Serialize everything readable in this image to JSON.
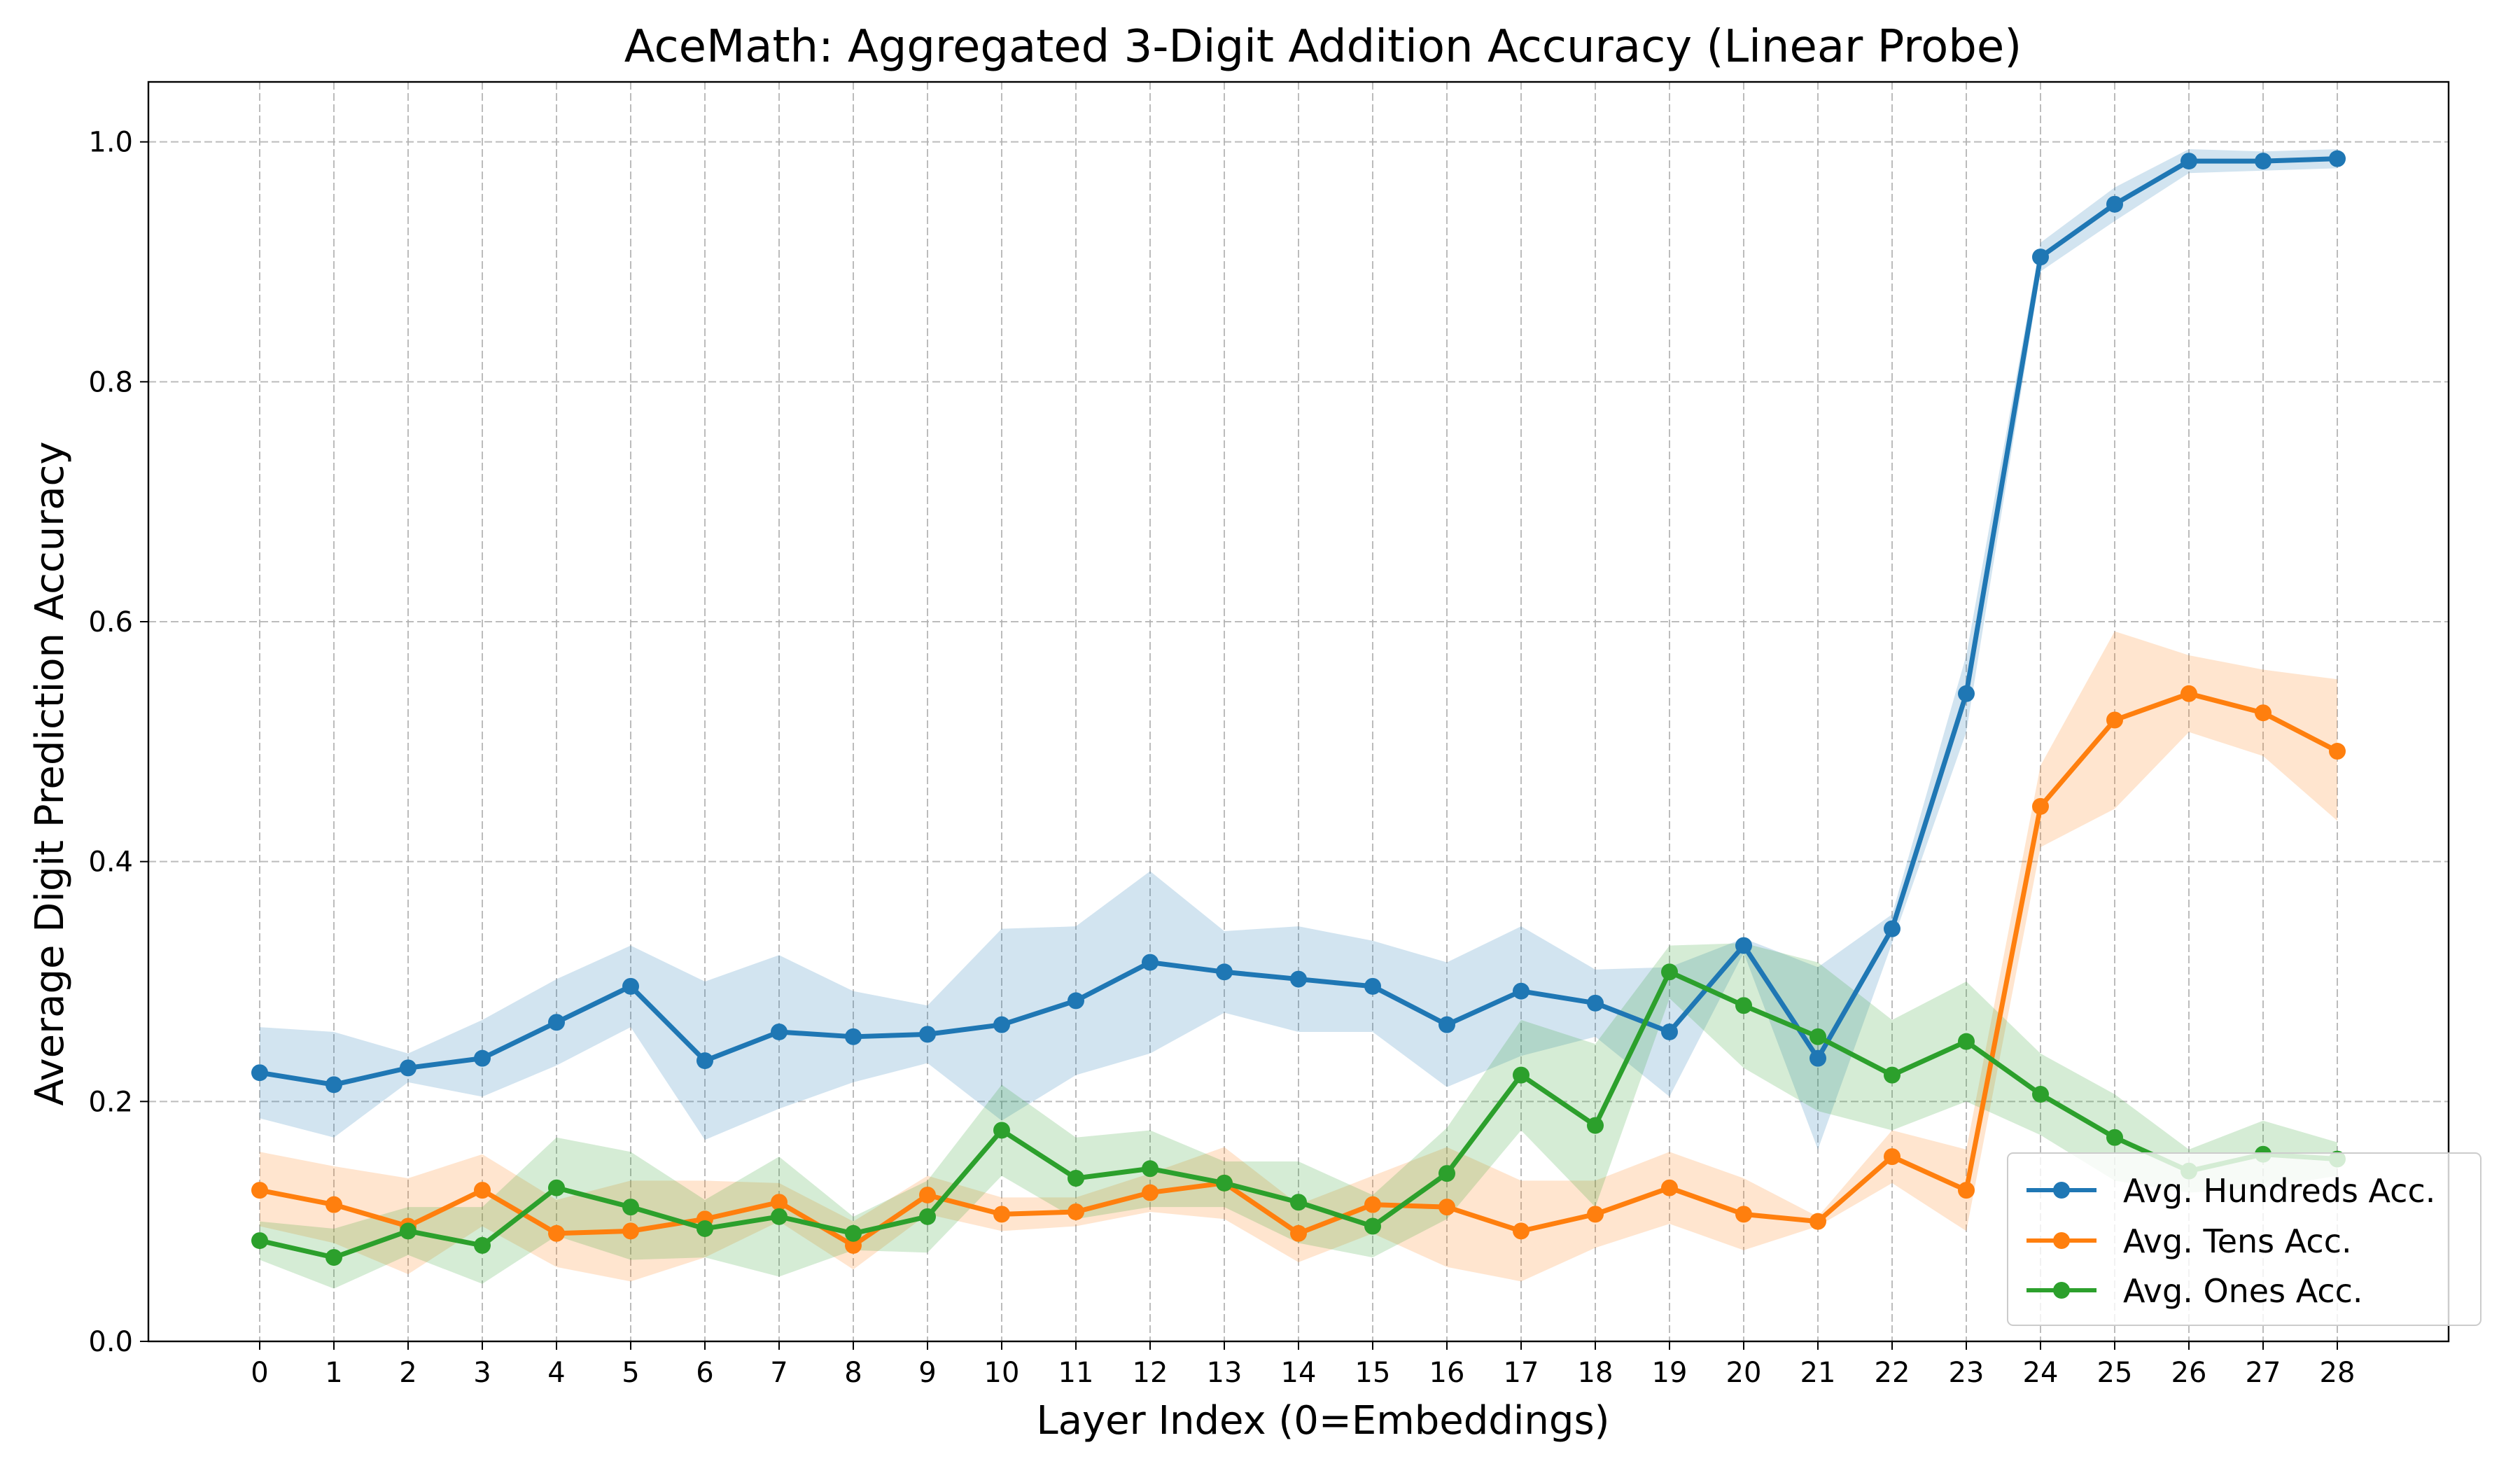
{
  "chart_data": {
    "type": "line",
    "title": "AceMath: Aggregated 3-Digit Addition Accuracy (Linear Probe)",
    "xlabel": "Layer Index (0=Embeddings)",
    "ylabel": "Average Digit Prediction Accuracy",
    "x": [
      0,
      1,
      2,
      3,
      4,
      5,
      6,
      7,
      8,
      9,
      10,
      11,
      12,
      13,
      14,
      15,
      16,
      17,
      18,
      19,
      20,
      21,
      22,
      23,
      24,
      25,
      26,
      27,
      28
    ],
    "xlim": [
      -1.5,
      29.5
    ],
    "ylim": [
      0.0,
      1.05
    ],
    "yticks": [
      0.0,
      0.2,
      0.4,
      0.6,
      0.8,
      1.0
    ],
    "ytick_labels": [
      "0.0",
      "0.2",
      "0.4",
      "0.6",
      "0.8",
      "1.0"
    ],
    "grid": true,
    "legend_position": "lower-right",
    "series": [
      {
        "name": "Avg. Hundreds Acc.",
        "color": "#1f77b4",
        "values": [
          0.224,
          0.214,
          0.228,
          0.236,
          0.266,
          0.296,
          0.234,
          0.258,
          0.254,
          0.256,
          0.264,
          0.284,
          0.316,
          0.308,
          0.302,
          0.296,
          0.264,
          0.292,
          0.282,
          0.258,
          0.33,
          0.236,
          0.344,
          0.54,
          0.904,
          0.948,
          0.984,
          0.984,
          0.986
        ],
        "upper": [
          0.262,
          0.258,
          0.24,
          0.268,
          0.302,
          0.33,
          0.3,
          0.322,
          0.292,
          0.28,
          0.344,
          0.346,
          0.392,
          0.342,
          0.346,
          0.334,
          0.316,
          0.346,
          0.31,
          0.312,
          0.336,
          0.312,
          0.356,
          0.572,
          0.916,
          0.962,
          0.994,
          0.992,
          0.994
        ],
        "lower": [
          0.186,
          0.17,
          0.216,
          0.204,
          0.23,
          0.262,
          0.168,
          0.194,
          0.216,
          0.232,
          0.184,
          0.222,
          0.24,
          0.274,
          0.258,
          0.258,
          0.212,
          0.238,
          0.254,
          0.204,
          0.324,
          0.16,
          0.332,
          0.508,
          0.892,
          0.934,
          0.974,
          0.976,
          0.978
        ]
      },
      {
        "name": "Avg. Tens Acc.",
        "color": "#ff7f0e",
        "values": [
          0.126,
          0.114,
          0.096,
          0.126,
          0.09,
          0.092,
          0.102,
          0.116,
          0.08,
          0.122,
          0.106,
          0.108,
          0.124,
          0.132,
          0.09,
          0.114,
          0.112,
          0.092,
          0.106,
          0.128,
          0.106,
          0.1,
          0.154,
          0.126,
          0.446,
          0.518,
          0.54,
          0.524,
          0.492
        ],
        "upper": [
          0.158,
          0.146,
          0.136,
          0.156,
          0.118,
          0.134,
          0.134,
          0.132,
          0.1,
          0.138,
          0.12,
          0.12,
          0.14,
          0.162,
          0.114,
          0.138,
          0.162,
          0.134,
          0.134,
          0.158,
          0.136,
          0.104,
          0.176,
          0.16,
          0.48,
          0.592,
          0.572,
          0.56,
          0.552
        ],
        "lower": [
          0.096,
          0.082,
          0.056,
          0.096,
          0.062,
          0.05,
          0.07,
          0.1,
          0.06,
          0.106,
          0.092,
          0.096,
          0.108,
          0.102,
          0.066,
          0.09,
          0.062,
          0.05,
          0.078,
          0.098,
          0.076,
          0.096,
          0.132,
          0.092,
          0.412,
          0.444,
          0.508,
          0.488,
          0.434
        ]
      },
      {
        "name": "Avg. Ones Acc.",
        "color": "#2ca02c",
        "values": [
          0.084,
          0.07,
          0.092,
          0.08,
          0.128,
          0.112,
          0.094,
          0.104,
          0.09,
          0.104,
          0.176,
          0.136,
          0.144,
          0.132,
          0.116,
          0.096,
          0.14,
          0.222,
          0.18,
          0.308,
          0.28,
          0.254,
          0.222,
          0.25,
          0.206,
          0.17,
          0.142,
          0.156,
          0.152
        ],
        "upper": [
          0.1,
          0.094,
          0.112,
          0.112,
          0.17,
          0.158,
          0.118,
          0.154,
          0.104,
          0.134,
          0.214,
          0.17,
          0.176,
          0.15,
          0.15,
          0.122,
          0.178,
          0.268,
          0.248,
          0.33,
          0.332,
          0.316,
          0.268,
          0.3,
          0.24,
          0.206,
          0.16,
          0.184,
          0.166
        ],
        "lower": [
          0.068,
          0.044,
          0.072,
          0.048,
          0.088,
          0.068,
          0.07,
          0.054,
          0.076,
          0.074,
          0.138,
          0.102,
          0.112,
          0.112,
          0.082,
          0.07,
          0.102,
          0.176,
          0.112,
          0.286,
          0.228,
          0.192,
          0.176,
          0.2,
          0.172,
          0.134,
          0.124,
          0.128,
          0.138
        ]
      }
    ]
  }
}
